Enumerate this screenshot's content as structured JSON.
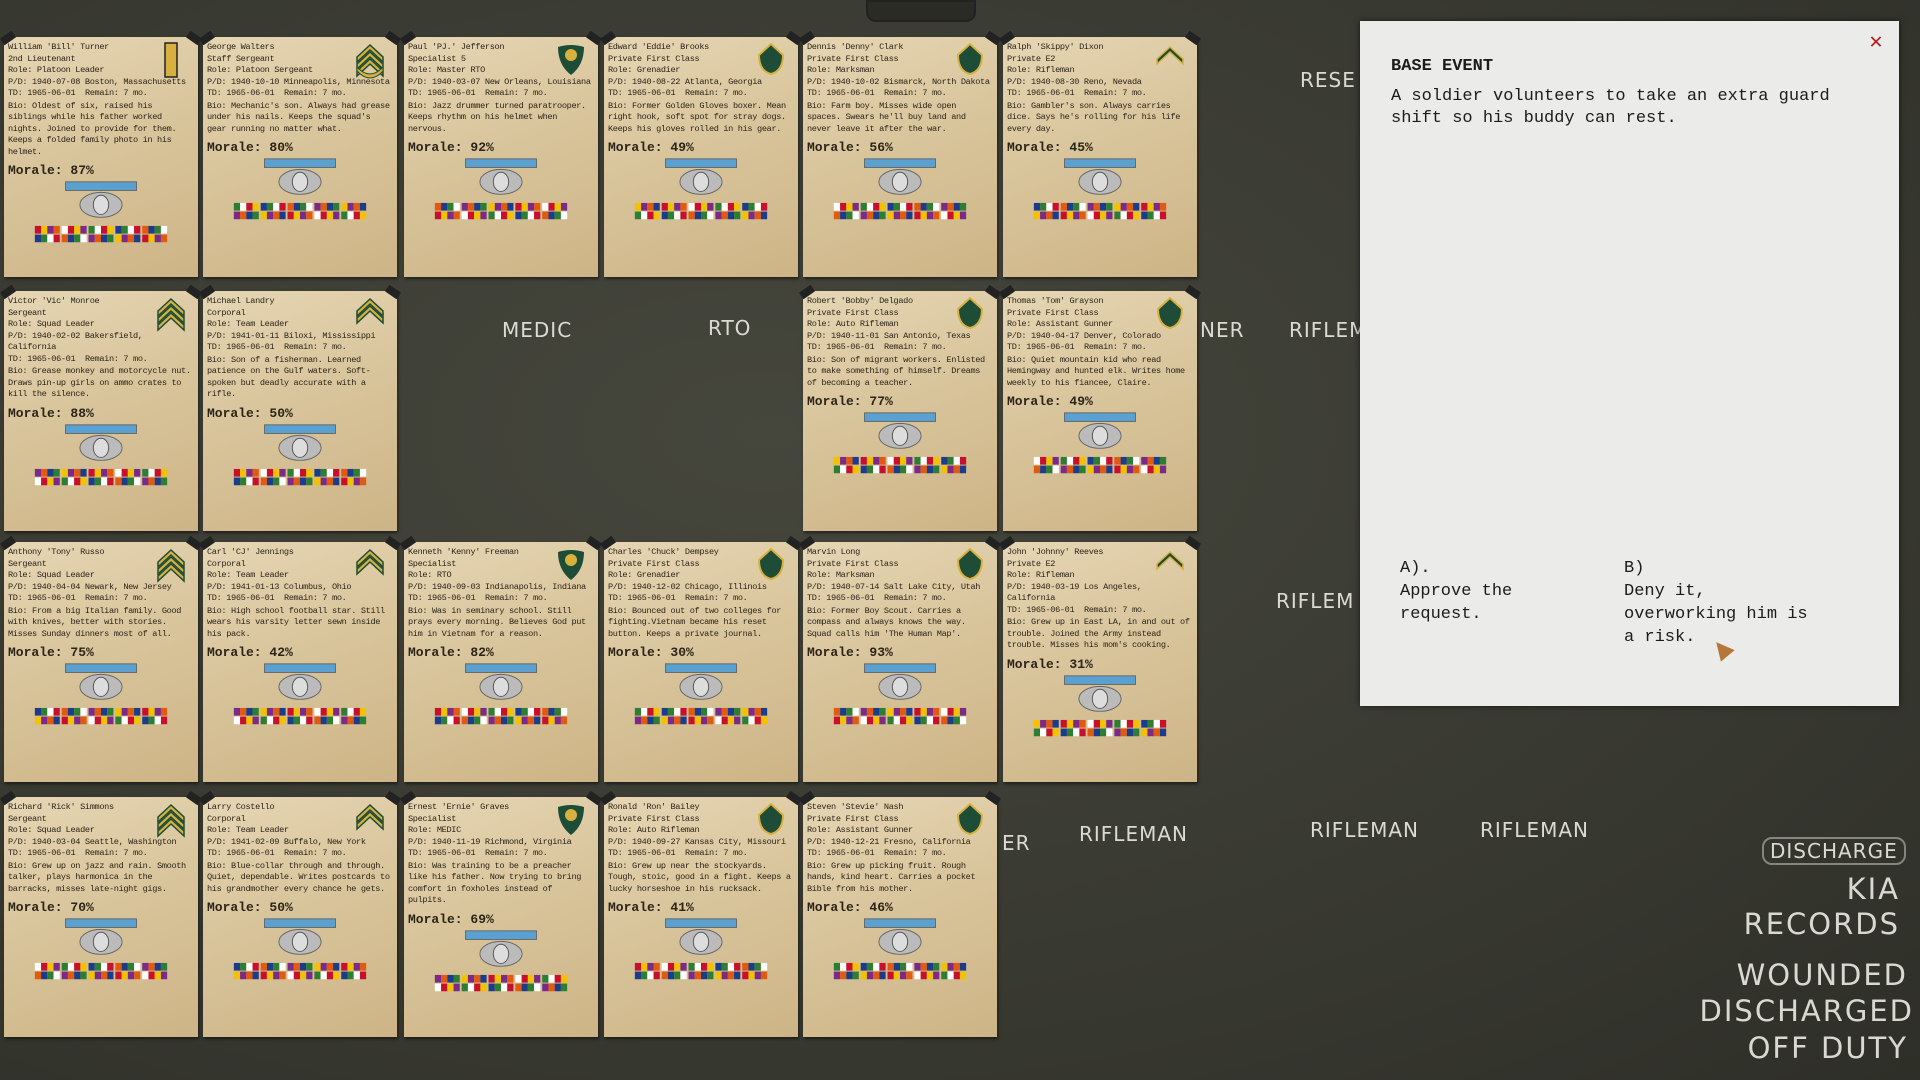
{
  "board_labels": [
    "RESE",
    "MEDIC",
    "RTO",
    "NER",
    "RIFLEM",
    "RIFLEM",
    "ER",
    "RIFLEMAN",
    "RIFLEMAN",
    "RIFLEMAN"
  ],
  "menu": {
    "discharge": "DISCHARGE",
    "kia": "KIA",
    "records": "RECORDS",
    "wounded": "WOUNDED",
    "discharged": "DISCHARGED",
    "off_duty": "OFF DUTY"
  },
  "event": {
    "title": "BASE EVENT",
    "description": "A soldier volunteers to take an extra guard shift so his buddy can rest.",
    "option_a_label": "A).",
    "option_a_text": "Approve the request.",
    "option_b_label": "B)",
    "option_b_text": "Deny it, overworking him is a risk.",
    "close_icon": "close-icon"
  },
  "colors": {
    "board": "#3b3c33",
    "card": "#dccaa2",
    "insignia_green": "#1d4d36",
    "insignia_gold": "#d8b040",
    "close": "#b32020"
  },
  "soldiers": [
    {
      "name": "William 'Bill' Turner",
      "rank": "2nd Lieutenant",
      "role": "Role: Platoon Leader",
      "pd": "P/D: 1940-07-08 Boston, Massachusetts",
      "td": "TD: 1965-06-01",
      "remain": "Remain: 7 mo.",
      "bio": "Bio: Oldest of six, raised his siblings while his father worked nights. Joined to provide for them. Keeps a folded family photo in his helmet.",
      "morale": "Morale: 87%",
      "insignia": "second-lieutenant-bar"
    },
    {
      "name": "George Walters",
      "rank": "Staff Sergeant",
      "role": "Role: Platoon Sergeant",
      "pd": "P/D: 1940-10-10 Minneapolis, Minnesota",
      "td": "TD: 1965-06-01",
      "remain": "Remain: 7 mo.",
      "bio": "Bio: Mechanic's son. Always had grease under his nails. Keeps the squad's gear running no matter what.",
      "morale": "Morale: 80%",
      "insignia": "staff-sergeant-chevron"
    },
    {
      "name": "Paul 'PJ.' Jefferson",
      "rank": "Specialist 5",
      "role": "Role: Master RTO",
      "pd": "P/D: 1940-03-07 New Orleans, Louisiana",
      "td": "TD: 1965-06-01",
      "remain": "Remain: 7 mo.",
      "bio": "Bio: Jazz drummer turned paratrooper. Keeps rhythm on his helmet when nervous.",
      "morale": "Morale: 92%",
      "insignia": "specialist-5-eagle"
    },
    {
      "name": "Edward 'Eddie' Brooks",
      "rank": "Private First Class",
      "role": "Role: Grenadier",
      "pd": "P/D: 1940-08-22 Atlanta, Georgia",
      "td": "TD: 1965-06-01",
      "remain": "Remain: 7 mo.",
      "bio": "Bio: Former Golden Gloves boxer. Mean right hook, soft spot for stray dogs. Keeps his gloves rolled in his gear.",
      "morale": "Morale: 49%",
      "insignia": "pfc-chevron"
    },
    {
      "name": "Dennis 'Denny' Clark",
      "rank": "Private First Class",
      "role": "Role: Marksman",
      "pd": "P/D: 1940-10-02 Bismarck, North Dakota",
      "td": "TD: 1965-06-01",
      "remain": "Remain: 7 mo.",
      "bio": "Bio: Farm boy. Misses wide open spaces. Swears he'll buy land and never leave it after the war.",
      "morale": "Morale: 56%",
      "insignia": "pfc-chevron"
    },
    {
      "name": "Ralph 'Skippy' Dixon",
      "rank": "Private E2",
      "role": "Role: Rifleman",
      "pd": "P/D: 1940-08-30 Reno, Nevada",
      "td": "TD: 1965-06-01",
      "remain": "Remain: 7 mo.",
      "bio": "Bio: Gambler's son. Always carries dice. Says he's rolling for his life every day.",
      "morale": "Morale: 45%",
      "insignia": "private-e2-chevron"
    },
    {
      "name": "Victor 'Vic' Monroe",
      "rank": "Sergeant",
      "role": "Role: Squad Leader",
      "pd": "P/D: 1940-02-02 Bakersfield, California",
      "td": "TD: 1965-06-01",
      "remain": "Remain: 7 mo.",
      "bio": "Bio: Grease monkey and motorcycle nut. Draws pin-up girls on ammo crates to kill the silence.",
      "morale": "Morale: 88%",
      "insignia": "sergeant-chevron"
    },
    {
      "name": "Michael Landry",
      "rank": "Corporal",
      "role": "Role: Team Leader",
      "pd": "P/D: 1941-01-11 Biloxi, Mississippi",
      "td": "TD: 1965-06-01",
      "remain": "Remain: 7 mo.",
      "bio": "Bio: Son of a fisherman. Learned patience on the Gulf waters. Soft-spoken but deadly accurate with a rifle.",
      "morale": "Morale: 50%",
      "insignia": "corporal-chevron"
    },
    null,
    null,
    {
      "name": "Robert 'Bobby' Delgado",
      "rank": "Private First Class",
      "role": "Role: Auto Rifleman",
      "pd": "P/D: 1940-11-01 San Antonio, Texas",
      "td": "TD: 1965-06-01",
      "remain": "Remain: 7 mo.",
      "bio": "Bio: Son of migrant workers. Enlisted to make something of himself. Dreams of becoming a teacher.",
      "morale": "Morale: 77%",
      "insignia": "pfc-chevron"
    },
    {
      "name": "Thomas 'Tom' Grayson",
      "rank": "Private First Class",
      "role": "Role: Assistant Gunner",
      "pd": "P/D: 1940-04-17 Denver, Colorado",
      "td": "TD: 1965-06-01",
      "remain": "Remain: 7 mo.",
      "bio": "Bio: Quiet mountain kid who read Hemingway and hunted elk. Writes home weekly to his fiancee, Claire.",
      "morale": "Morale: 49%",
      "insignia": "pfc-chevron"
    },
    {
      "name": "Anthony 'Tony' Russo",
      "rank": "Sergeant",
      "role": "Role: Squad Leader",
      "pd": "P/D: 1940-04-04 Newark, New Jersey",
      "td": "TD: 1965-06-01",
      "remain": "Remain: 7 mo.",
      "bio": "Bio: From a big Italian family. Good with knives, better with stories. Misses Sunday dinners most of all.",
      "morale": "Morale: 75%",
      "insignia": "sergeant-chevron"
    },
    {
      "name": "Carl 'CJ' Jennings",
      "rank": "Corporal",
      "role": "Role: Team Leader",
      "pd": "P/D: 1941-01-13 Columbus, Ohio",
      "td": "TD: 1965-06-01",
      "remain": "Remain: 7 mo.",
      "bio": "Bio: High school football star. Still wears his varsity letter sewn inside his pack.",
      "morale": "Morale: 42%",
      "insignia": "corporal-chevron"
    },
    {
      "name": "Kenneth 'Kenny' Freeman",
      "rank": "Specialist",
      "role": "Role: RTO",
      "pd": "P/D: 1940-09-03 Indianapolis, Indiana",
      "td": "TD: 1965-06-01",
      "remain": "Remain: 7 mo.",
      "bio": "Bio: Was in seminary school. Still prays every morning. Believes God put him in Vietnam for a reason.",
      "morale": "Morale: 82%",
      "insignia": "specialist-eagle"
    },
    {
      "name": "Charles 'Chuck' Dempsey",
      "rank": "Private First Class",
      "role": "Role: Grenadier",
      "pd": "P/D: 1940-12-02 Chicago, Illinois",
      "td": "TD: 1965-06-01",
      "remain": "Remain: 7 mo.",
      "bio": "Bio: Bounced out of two colleges for fighting.Vietnam became his reset button. Keeps a private journal.",
      "morale": "Morale: 30%",
      "insignia": "pfc-chevron"
    },
    {
      "name": "Marvin Long",
      "rank": "Private First Class",
      "role": "Role: Marksman",
      "pd": "P/D: 1940-07-14 Salt Lake City, Utah",
      "td": "TD: 1965-06-01",
      "remain": "Remain: 7 mo.",
      "bio": "Bio: Former Boy Scout. Carries a compass and always knows the way. Squad calls him 'The Human Map'.",
      "morale": "Morale: 93%",
      "insignia": "pfc-chevron"
    },
    {
      "name": "John 'Johnny' Reeves",
      "rank": "Private E2",
      "role": "Role: Rifleman",
      "pd": "P/D: 1940-03-19 Los Angeles, California",
      "td": "TD: 1965-06-01",
      "remain": "Remain: 7 mo.",
      "bio": "Bio: Grew up in East LA, in and out of trouble. Joined the Army instead trouble. Misses his mom's cooking.",
      "morale": "Morale: 31%",
      "insignia": "private-e2-chevron"
    },
    {
      "name": "Richard 'Rick' Simmons",
      "rank": "Sergeant",
      "role": "Role: Squad Leader",
      "pd": "P/D: 1940-03-04 Seattle, Washington",
      "td": "TD: 1965-06-01",
      "remain": "Remain: 7 mo.",
      "bio": "Bio: Grew up on jazz and rain. Smooth talker, plays harmonica in the barracks, misses late-night gigs.",
      "morale": "Morale: 70%",
      "insignia": "sergeant-chevron"
    },
    {
      "name": "Larry Costello",
      "rank": "Corporal",
      "role": "Role: Team Leader",
      "pd": "P/D: 1941-02-09 Buffalo, New York",
      "td": "TD: 1965-06-01",
      "remain": "Remain: 7 mo.",
      "bio": "Bio: Blue-collar through and through. Quiet, dependable. Writes postcards to his grandmother every chance he gets.",
      "morale": "Morale: 50%",
      "insignia": "corporal-chevron"
    },
    {
      "name": "Ernest 'Ernie' Graves",
      "rank": "Specialist",
      "role": "Role: MEDIC",
      "pd": "P/D: 1940-11-19 Richmond, Virginia",
      "td": "TD: 1965-06-01",
      "remain": "Remain: 7 mo.",
      "bio": "Bio: Was training to be a preacher like his father. Now trying to bring comfort in foxholes instead of pulpits.",
      "morale": "Morale: 69%",
      "insignia": "specialist-eagle"
    },
    {
      "name": "Ronald 'Ron' Bailey",
      "rank": "Private First Class",
      "role": "Role: Auto Rifleman",
      "pd": "P/D: 1940-09-27 Kansas City, Missouri",
      "td": "TD: 1965-06-01",
      "remain": "Remain: 7 mo.",
      "bio": "Bio: Grew up near the stockyards. Tough, stoic, good in a fight. Keeps a lucky horseshoe in his rucksack.",
      "morale": "Morale: 41%",
      "insignia": "pfc-chevron"
    },
    {
      "name": "Steven 'Stevie' Nash",
      "rank": "Private First Class",
      "role": "Role: Assistant Gunner",
      "pd": "P/D: 1940-12-21 Fresno, California",
      "td": "TD: 1965-06-01",
      "remain": "Remain: 7 mo.",
      "bio": "Bio: Grew up picking fruit. Rough hands, kind heart. Carries a pocket Bible from his mother.",
      "morale": "Morale: 46%",
      "insignia": "pfc-chevron"
    }
  ]
}
